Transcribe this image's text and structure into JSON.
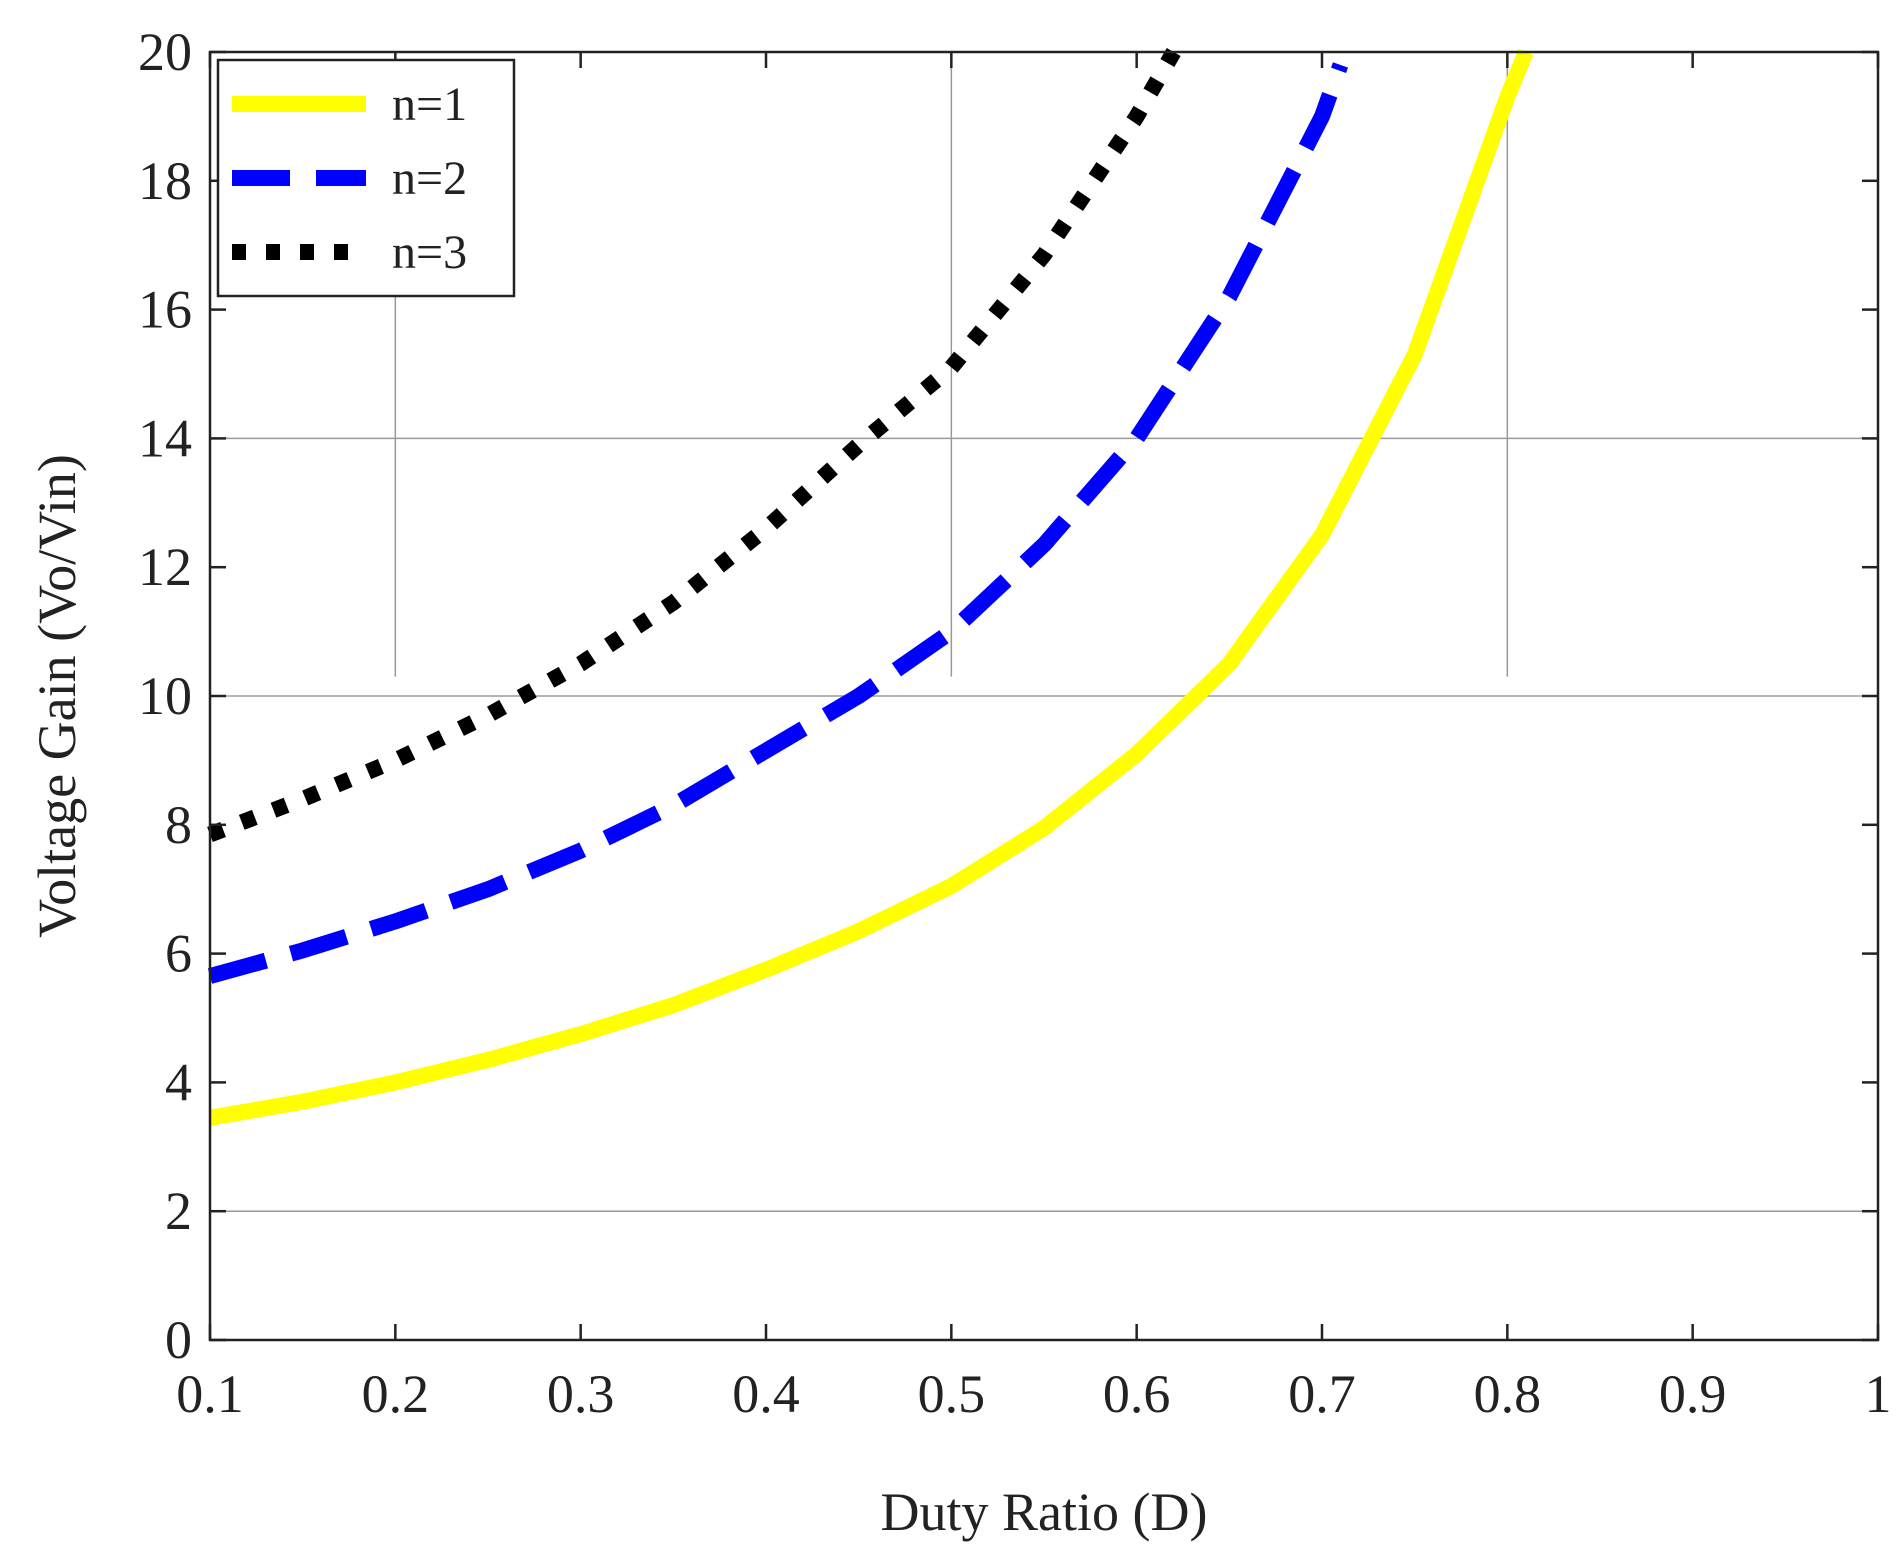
{
  "chart_data": {
    "type": "line",
    "xlabel": "Duty Ratio (D)",
    "ylabel": "Voltage Gain (Vo/Vin)",
    "xlim": [
      0.1,
      1
    ],
    "ylim": [
      0,
      20
    ],
    "xticks": [
      0.1,
      0.2,
      0.3,
      0.4,
      0.5,
      0.6,
      0.7,
      0.8,
      0.9,
      1
    ],
    "xtick_labels": [
      "0.1",
      "0.2",
      "0.3",
      "0.4",
      "0.5",
      "0.6",
      "0.7",
      "0.8",
      "0.9",
      "1"
    ],
    "yticks": [
      0,
      2,
      4,
      6,
      8,
      10,
      12,
      14,
      16,
      18,
      20
    ],
    "ytick_labels": [
      "0",
      "2",
      "4",
      "6",
      "8",
      "10",
      "12",
      "14",
      "16",
      "18",
      "20"
    ],
    "legend_position": "top-left",
    "grid": {
      "horizontal_lines_y": [
        2,
        10,
        14
      ],
      "vertical_lines": [
        {
          "x": 0.2,
          "y_from": 10.3,
          "y_to": 16.5
        },
        {
          "x": 0.5,
          "y_from": 10.3,
          "y_to": 20
        },
        {
          "x": 0.8,
          "y_from": 10.3,
          "y_to": 20
        }
      ]
    },
    "series": [
      {
        "name": "n=1",
        "color": "#ffff00",
        "style": "solid",
        "x": [
          0.1,
          0.15,
          0.2,
          0.25,
          0.3,
          0.35,
          0.4,
          0.45,
          0.5,
          0.55,
          0.6,
          0.65,
          0.7,
          0.75,
          0.8,
          0.81
        ],
        "y": [
          3.45,
          3.7,
          4.0,
          4.35,
          4.75,
          5.2,
          5.75,
          6.35,
          7.05,
          7.95,
          9.1,
          10.5,
          12.5,
          15.3,
          19.3,
          20.0
        ]
      },
      {
        "name": "n=2",
        "color": "#0000ff",
        "style": "dashed",
        "x": [
          0.1,
          0.15,
          0.2,
          0.25,
          0.3,
          0.35,
          0.4,
          0.45,
          0.5,
          0.55,
          0.6,
          0.65,
          0.7,
          0.71
        ],
        "y": [
          5.65,
          6.05,
          6.5,
          7.0,
          7.6,
          8.3,
          9.15,
          10.0,
          11.0,
          12.35,
          14.0,
          16.2,
          19.0,
          19.8
        ]
      },
      {
        "name": "n=3",
        "color": "#000000",
        "style": "dotted",
        "x": [
          0.1,
          0.15,
          0.2,
          0.25,
          0.3,
          0.35,
          0.4,
          0.45,
          0.5,
          0.55,
          0.6,
          0.62
        ],
        "y": [
          7.85,
          8.4,
          9.0,
          9.7,
          10.5,
          11.45,
          12.6,
          13.9,
          15.1,
          16.85,
          19.0,
          20.0
        ]
      }
    ]
  }
}
